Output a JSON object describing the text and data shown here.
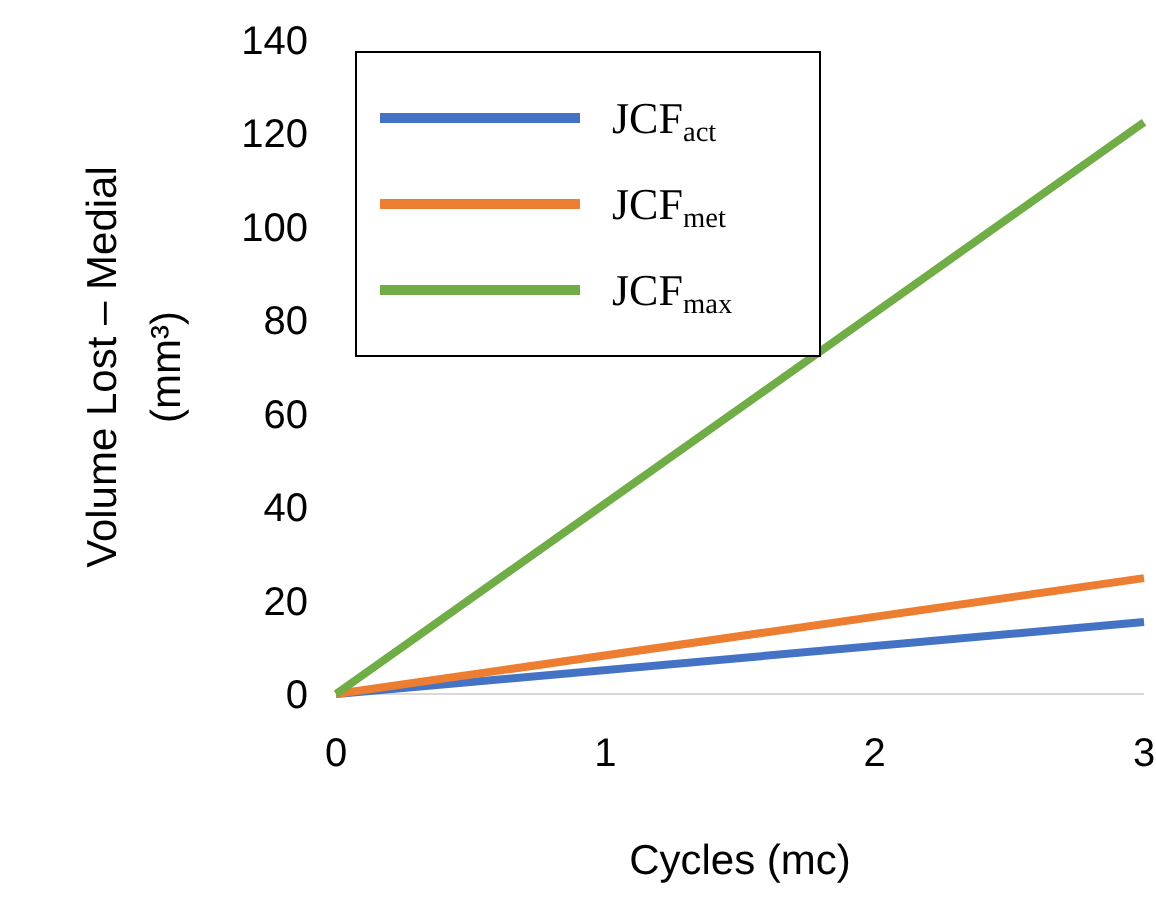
{
  "chart_data": {
    "type": "line",
    "xlabel": "Cycles (mc)",
    "ylabel": "Volume Lost – Medial\n(mm³)",
    "x": [
      0,
      3
    ],
    "series": [
      {
        "name": "JCF$_{act}$",
        "color": "#4472c4",
        "values": [
          0,
          15.4
        ]
      },
      {
        "name": "JCF$_{met}$",
        "color": "#ed7d31",
        "values": [
          0,
          24.8
        ]
      },
      {
        "name": "JCF$_{max}$",
        "color": "#70ad47",
        "values": [
          0,
          122.4
        ]
      }
    ],
    "xlim": [
      0,
      3
    ],
    "xticks": [
      0,
      1,
      2,
      3
    ],
    "ylim": [
      0,
      140
    ],
    "yticks": [
      0,
      20,
      40,
      60,
      80,
      100,
      120,
      140
    ],
    "grid": false,
    "legend": "top left",
    "marker": "none",
    "line_style": "solid"
  }
}
